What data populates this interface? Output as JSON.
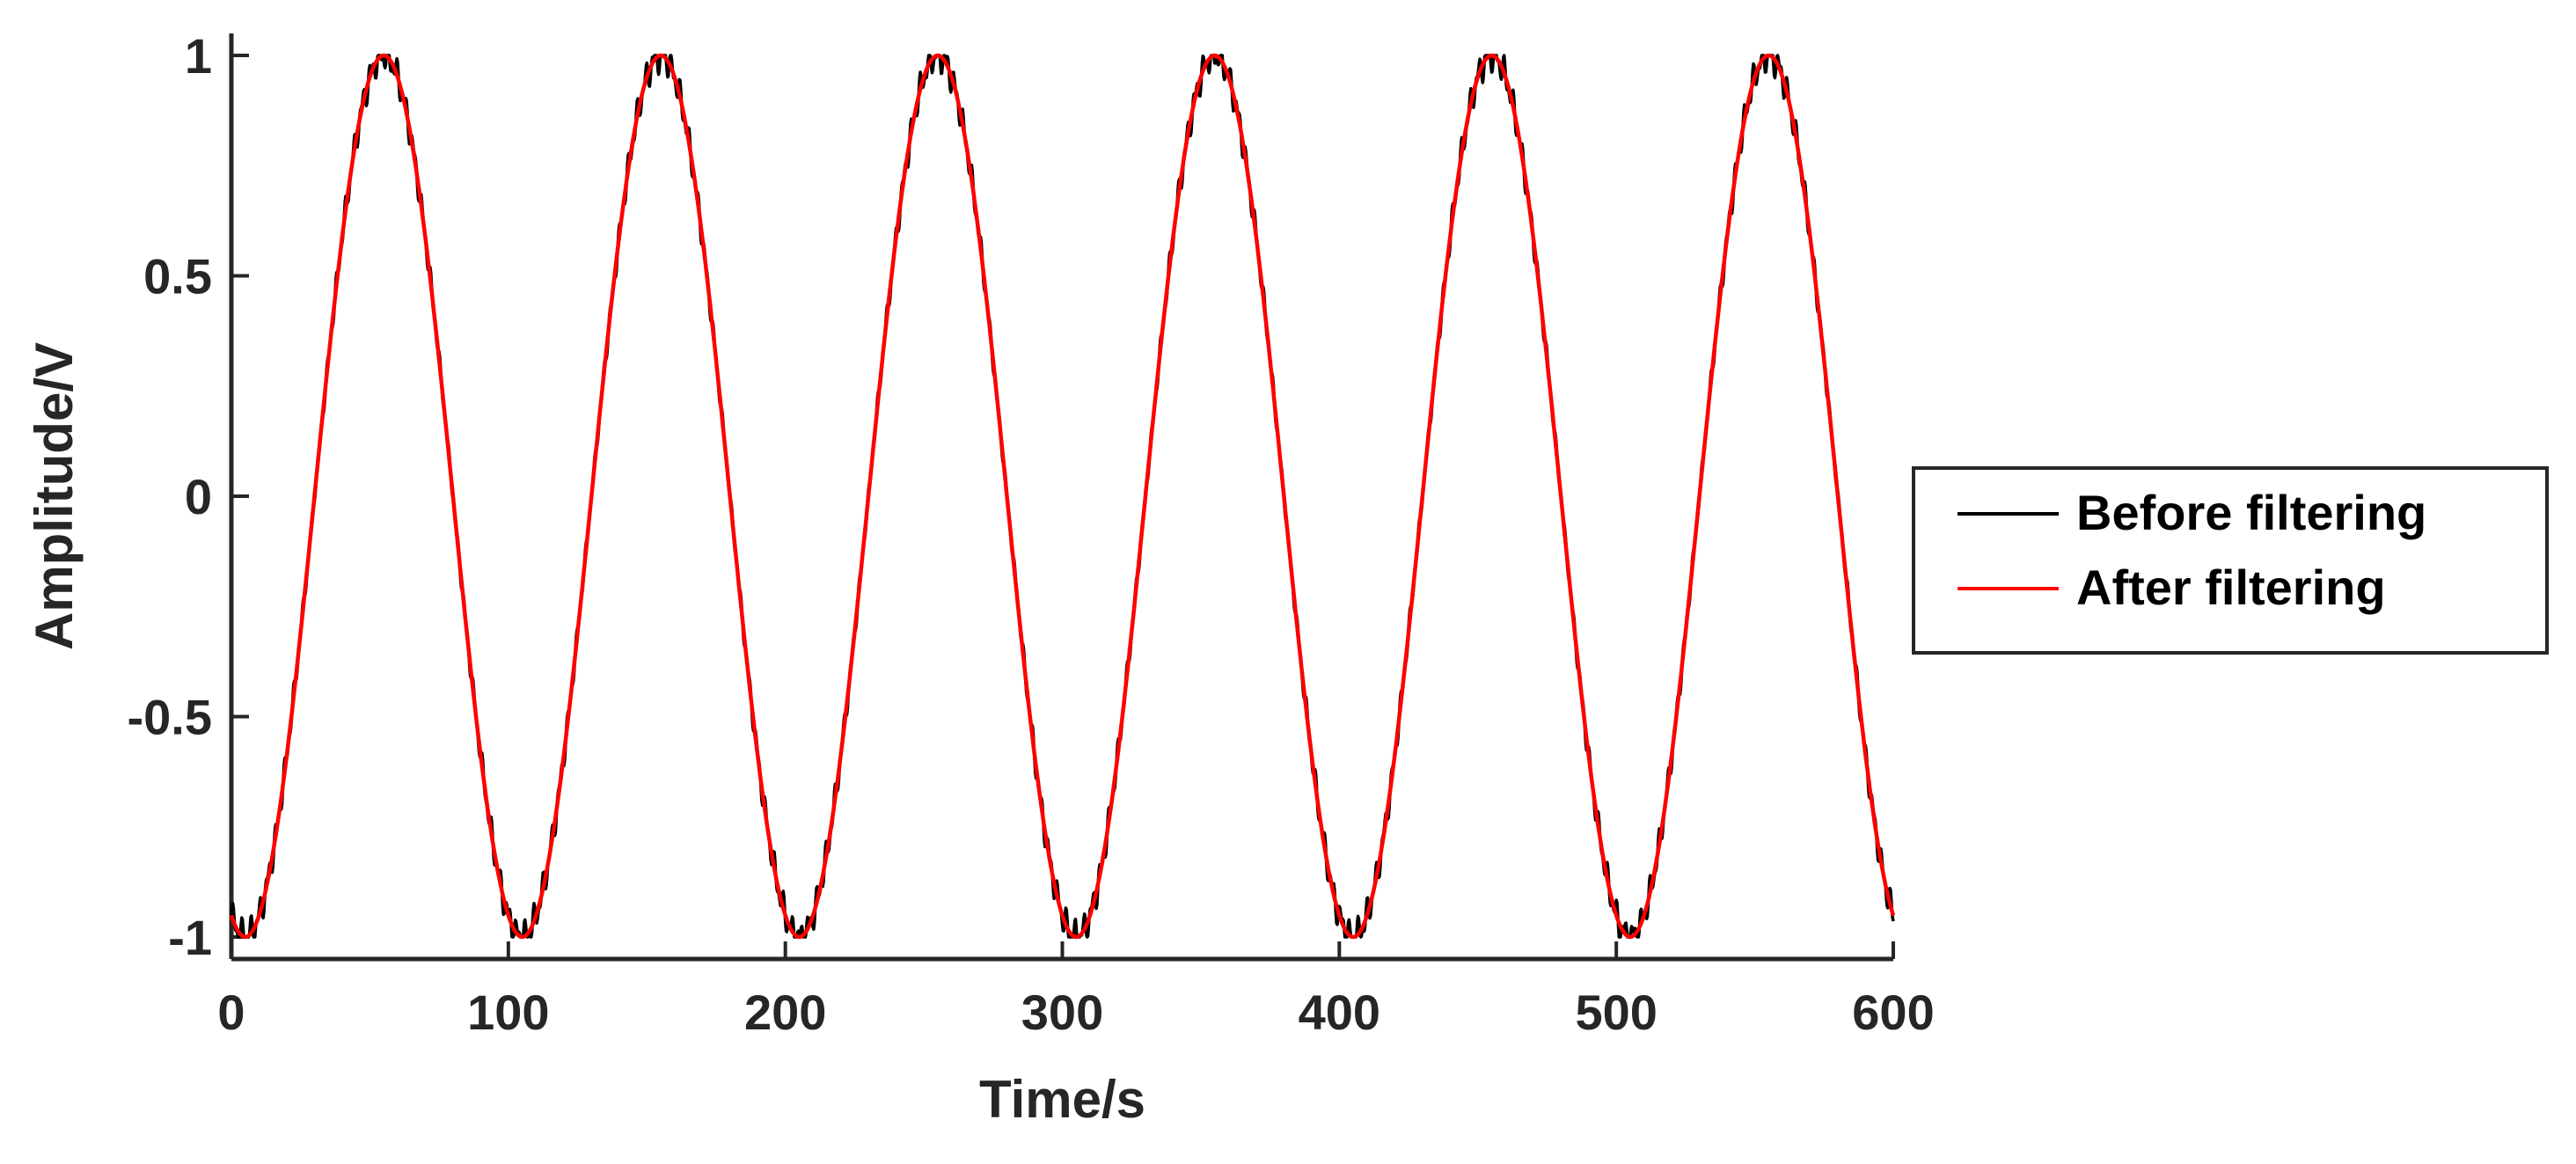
{
  "chart_data": {
    "type": "line",
    "title": "",
    "xlabel": "Time/s",
    "ylabel": "Amplitude/V",
    "xlim": [
      0,
      600
    ],
    "ylim": [
      -1.05,
      1.05
    ],
    "xticks": [
      0,
      100,
      200,
      300,
      400,
      500,
      600
    ],
    "xtick_labels": [
      "0",
      "100",
      "200",
      "300",
      "400",
      "500",
      "600"
    ],
    "yticks": [
      -1,
      -0.5,
      0,
      0.5,
      1
    ],
    "ytick_labels": [
      "-1",
      "-0.5",
      "0",
      "0.5",
      "1"
    ],
    "grid": false,
    "legend_position": "right",
    "signal": {
      "amplitude": 1,
      "period_s": 100,
      "phase_offset_s": 5,
      "t_start": 0,
      "t_end": 600,
      "noise_amplitude": 0.03
    },
    "series": [
      {
        "name": "Before filtering",
        "color": "#000000"
      },
      {
        "name": "After filtering",
        "color": "#ff0000"
      }
    ]
  }
}
